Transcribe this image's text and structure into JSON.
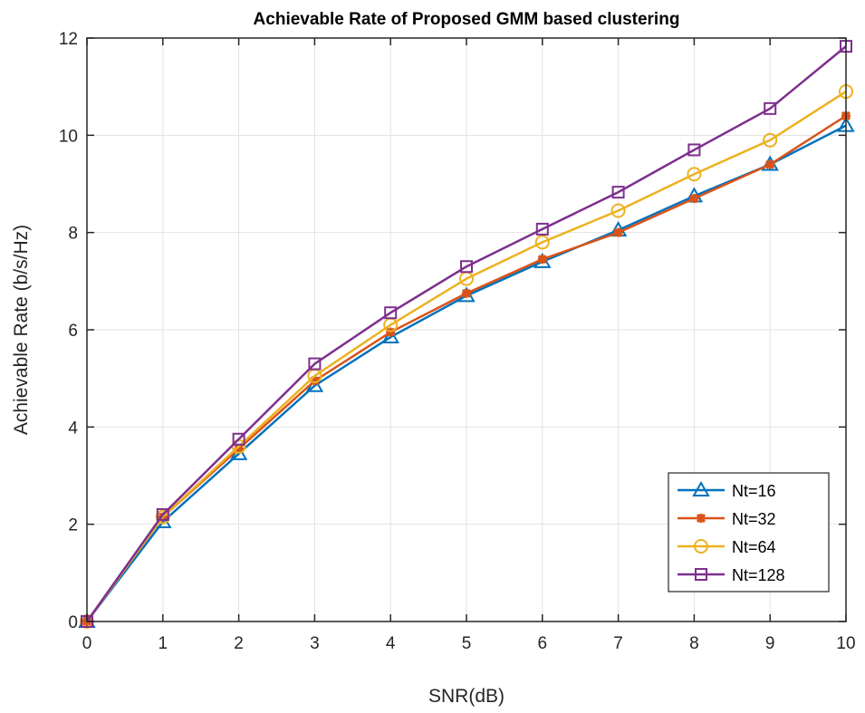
{
  "chart_data": {
    "type": "line",
    "title": "Achievable Rate of Proposed GMM based clustering",
    "xlabel": "SNR(dB)",
    "ylabel": "Achievable Rate (b/s/Hz)",
    "xlim": [
      0,
      10
    ],
    "ylim": [
      0,
      12
    ],
    "xticks": [
      "0",
      "1",
      "2",
      "3",
      "4",
      "5",
      "6",
      "7",
      "8",
      "9",
      "10"
    ],
    "yticks": [
      "0",
      "2",
      "4",
      "6",
      "8",
      "10",
      "12"
    ],
    "grid": true,
    "legend_position": "bottom-right",
    "x": [
      0,
      1,
      2,
      3,
      4,
      5,
      6,
      7,
      8,
      9,
      10
    ],
    "series": [
      {
        "name": "Nt=16",
        "color": "#0072BD",
        "marker": "triangle",
        "values": [
          0,
          2.05,
          3.45,
          4.85,
          5.85,
          6.7,
          7.4,
          8.05,
          8.75,
          9.4,
          10.2
        ]
      },
      {
        "name": "Nt=32",
        "color": "#D95319",
        "marker": "asterisk",
        "values": [
          0,
          2.15,
          3.55,
          4.95,
          5.95,
          6.75,
          7.45,
          8.0,
          8.7,
          9.4,
          10.4
        ]
      },
      {
        "name": "Nt=64",
        "color": "#EDB120",
        "marker": "circle",
        "values": [
          0,
          2.15,
          3.6,
          5.05,
          6.1,
          7.05,
          7.8,
          8.45,
          9.2,
          9.9,
          10.9
        ]
      },
      {
        "name": "Nt=128",
        "color": "#7E2F8E",
        "marker": "square",
        "values": [
          0,
          2.2,
          3.75,
          5.3,
          6.35,
          7.3,
          8.07,
          8.83,
          9.7,
          10.55,
          11.83
        ]
      }
    ]
  }
}
